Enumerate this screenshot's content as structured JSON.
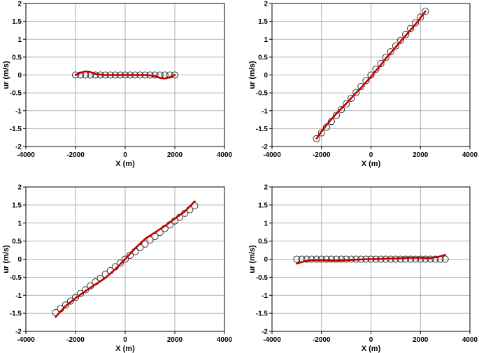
{
  "chart_data": [
    {
      "type": "scatter",
      "xlabel": "X (m)",
      "ylabel": "ur (m/s)",
      "xlim": [
        -4000,
        4000
      ],
      "ylim": [
        -2,
        2
      ],
      "xticks": [
        "-4000",
        "-2000",
        "0",
        "2000",
        "4000"
      ],
      "yticks": [
        "-2",
        "-1.5",
        "-1",
        "-0.5",
        "0",
        "0.5",
        "1",
        "1.5",
        "2"
      ],
      "grid": true,
      "series": [
        {
          "kind": "markers",
          "x": [
            -2000,
            -1800,
            -1600,
            -1400,
            -1200,
            -1000,
            -800,
            -600,
            -400,
            -200,
            0,
            200,
            400,
            600,
            800,
            1000,
            1200,
            1400,
            1600,
            1800,
            2000
          ],
          "y": [
            0,
            0,
            0,
            0,
            0,
            0,
            0,
            0,
            0,
            0,
            0,
            0,
            0,
            0,
            0,
            0,
            0,
            0,
            0,
            0,
            0
          ]
        },
        {
          "kind": "line",
          "color": "#c00000",
          "x": [
            -2000,
            -1800,
            -1600,
            -1400,
            -1200,
            -1000,
            -800,
            -600,
            -400,
            -200,
            0,
            200,
            400,
            600,
            800,
            1000,
            1200,
            1400,
            1600,
            1800,
            2000
          ],
          "y": [
            0,
            0.06,
            0.1,
            0.08,
            0.03,
            0.01,
            0,
            0,
            0,
            0,
            0,
            0,
            0,
            0,
            0,
            -0.01,
            -0.03,
            -0.08,
            -0.1,
            -0.06,
            0
          ]
        }
      ]
    },
    {
      "type": "scatter",
      "xlabel": "X (m)",
      "ylabel": "ur (m/s)",
      "xlim": [
        -4000,
        4000
      ],
      "ylim": [
        -2,
        2
      ],
      "xticks": [
        "-4000",
        "-2000",
        "0",
        "2000",
        "4000"
      ],
      "yticks": [
        "-2",
        "-1.5",
        "-1",
        "-0.5",
        "0",
        "0.5",
        "1",
        "1.5",
        "2"
      ],
      "grid": true,
      "series": [
        {
          "kind": "markers",
          "x": [
            -2200,
            -2000,
            -1800,
            -1600,
            -1400,
            -1200,
            -1000,
            -800,
            -600,
            -400,
            -200,
            0,
            200,
            400,
            600,
            800,
            1000,
            1200,
            1400,
            1600,
            1800,
            2000,
            2200
          ],
          "y": [
            -1.78,
            -1.62,
            -1.46,
            -1.3,
            -1.13,
            -0.97,
            -0.81,
            -0.65,
            -0.49,
            -0.32,
            -0.16,
            0,
            0.16,
            0.32,
            0.49,
            0.65,
            0.81,
            0.97,
            1.13,
            1.3,
            1.46,
            1.62,
            1.78
          ]
        },
        {
          "kind": "line",
          "color": "#c00000",
          "x": [
            -2200,
            -2000,
            -1800,
            -1600,
            -1400,
            -1200,
            -1000,
            -800,
            -600,
            -400,
            -200,
            0,
            200,
            400,
            600,
            800,
            1000,
            1200,
            1400,
            1600,
            1800,
            2000,
            2200
          ],
          "y": [
            -1.78,
            -1.58,
            -1.4,
            -1.24,
            -1.08,
            -0.94,
            -0.8,
            -0.65,
            -0.5,
            -0.36,
            -0.2,
            -0.05,
            0.12,
            0.28,
            0.46,
            0.62,
            0.78,
            0.94,
            1.1,
            1.26,
            1.42,
            1.6,
            1.78
          ]
        }
      ]
    },
    {
      "type": "scatter",
      "xlabel": "X (m)",
      "ylabel": "ur (m/s)",
      "xlim": [
        -4000,
        4000
      ],
      "ylim": [
        -2,
        2
      ],
      "xticks": [
        "-4000",
        "-2000",
        "0",
        "2000",
        "4000"
      ],
      "yticks": [
        "-2",
        "-1.5",
        "-1",
        "-0.5",
        "0",
        "0.5",
        "1",
        "1.5",
        "2"
      ],
      "grid": true,
      "series": [
        {
          "kind": "markers",
          "x": [
            -2800,
            -2600,
            -2400,
            -2200,
            -2000,
            -1800,
            -1600,
            -1400,
            -1200,
            -1000,
            -800,
            -600,
            -400,
            -200,
            0,
            200,
            400,
            600,
            800,
            1000,
            1200,
            1400,
            1600,
            1800,
            2000,
            2200,
            2400,
            2600,
            2800
          ],
          "y": [
            -1.48,
            -1.37,
            -1.27,
            -1.16,
            -1.06,
            -0.95,
            -0.85,
            -0.74,
            -0.63,
            -0.53,
            -0.42,
            -0.32,
            -0.21,
            -0.11,
            0,
            0.11,
            0.21,
            0.32,
            0.42,
            0.53,
            0.63,
            0.74,
            0.85,
            0.95,
            1.06,
            1.16,
            1.27,
            1.37,
            1.48
          ]
        },
        {
          "kind": "line",
          "color": "#c00000",
          "x": [
            -2800,
            -2400,
            -2000,
            -1600,
            -1200,
            -800,
            -400,
            0,
            400,
            800,
            1200,
            1600,
            2000,
            2400,
            2800
          ],
          "y": [
            -1.6,
            -1.3,
            -1.08,
            -0.88,
            -0.7,
            -0.52,
            -0.28,
            0,
            0.3,
            0.56,
            0.74,
            0.92,
            1.12,
            1.32,
            1.6
          ]
        }
      ]
    },
    {
      "type": "scatter",
      "xlabel": "X (m)",
      "ylabel": "ur (m/s)",
      "xlim": [
        -4000,
        4000
      ],
      "ylim": [
        -2,
        2
      ],
      "xticks": [
        "-4000",
        "-2000",
        "0",
        "2000",
        "4000"
      ],
      "yticks": [
        "-2",
        "-1.5",
        "-1",
        "-0.5",
        "0",
        "0.5",
        "1",
        "1.5",
        "2"
      ],
      "grid": true,
      "series": [
        {
          "kind": "markers",
          "x": [
            -3000,
            -2800,
            -2600,
            -2400,
            -2200,
            -2000,
            -1800,
            -1600,
            -1400,
            -1200,
            -1000,
            -800,
            -600,
            -400,
            -200,
            0,
            200,
            400,
            600,
            800,
            1000,
            1200,
            1400,
            1600,
            1800,
            2000,
            2200,
            2400,
            2600,
            2800,
            3000
          ],
          "y": [
            0,
            0,
            0,
            0,
            0,
            0,
            0,
            0,
            0,
            0,
            0,
            0,
            0,
            0,
            0,
            0,
            0,
            0,
            0,
            0,
            0,
            0,
            0,
            0,
            0,
            0,
            0,
            0,
            0,
            0,
            0
          ]
        },
        {
          "kind": "line",
          "color": "#c00000",
          "x": [
            -3000,
            -2700,
            -2400,
            -2000,
            -1500,
            -1000,
            -500,
            0,
            500,
            1000,
            1500,
            2000,
            2400,
            2700,
            3000
          ],
          "y": [
            -0.12,
            -0.06,
            -0.03,
            -0.03,
            -0.04,
            -0.03,
            -0.01,
            0,
            0.01,
            0.02,
            0.04,
            0.04,
            0.03,
            0.06,
            0.12
          ]
        }
      ]
    }
  ]
}
